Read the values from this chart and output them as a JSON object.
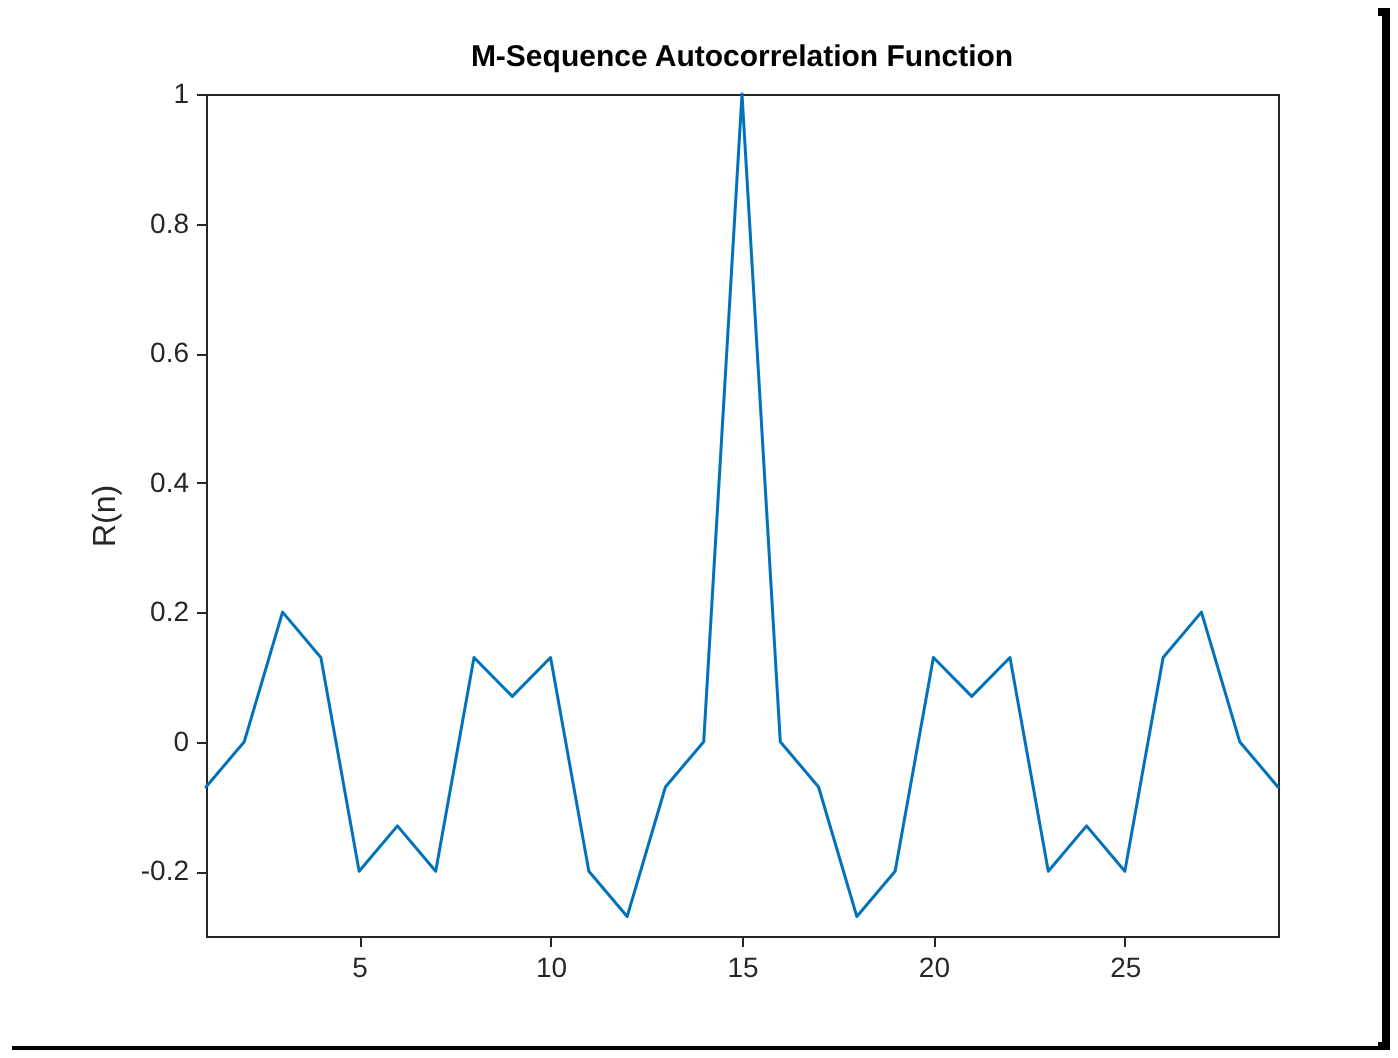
{
  "chart_data": {
    "type": "line",
    "title": "M-Sequence Autocorrelation Function",
    "ylabel": "R(n)",
    "x": [
      1,
      2,
      3,
      4,
      5,
      6,
      7,
      8,
      9,
      10,
      11,
      12,
      13,
      14,
      15,
      16,
      17,
      18,
      19,
      20,
      21,
      22,
      23,
      24,
      25,
      26,
      27,
      28,
      29
    ],
    "series": [
      {
        "color": "#0072bd",
        "values": [
          -0.07,
          0,
          0.2,
          0.13,
          -0.2,
          -0.13,
          -0.2,
          0.13,
          0.07,
          0.13,
          -0.2,
          -0.27,
          -0.07,
          0,
          1,
          0,
          -0.07,
          -0.27,
          -0.2,
          0.13,
          0.07,
          0.13,
          -0.2,
          -0.13,
          -0.2,
          0.13,
          0.2,
          0,
          -0.07
        ]
      }
    ],
    "xlim": [
      1,
      29
    ],
    "xticks": [
      5,
      10,
      15,
      20,
      25
    ],
    "ylim": [
      -0.3,
      1
    ],
    "yticks": [
      -0.2,
      0,
      0.2,
      0.4,
      0.6,
      0.8,
      1
    ],
    "grid": false,
    "marker": "none",
    "line_style": "solid"
  }
}
